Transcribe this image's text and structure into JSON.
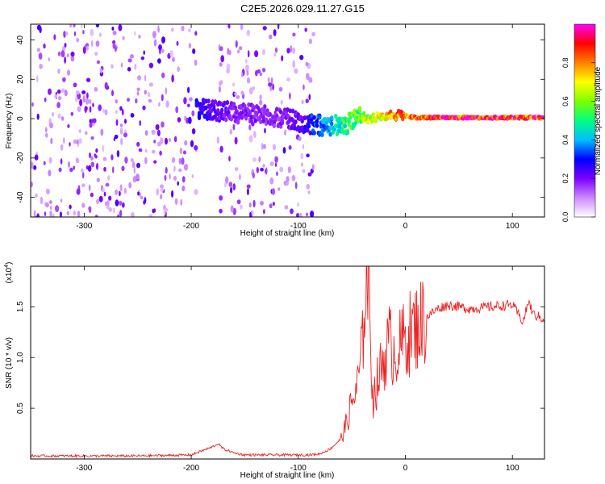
{
  "figure": {
    "title": "C2E5.2026.029.11.27.G15"
  },
  "chart_data": [
    {
      "type": "heatmap",
      "xlabel": "Height of straight line (km)",
      "ylabel": "Frequency (Hz)",
      "xlim": [
        -350,
        130
      ],
      "ylim": [
        -50,
        48
      ],
      "x_ticks": [
        -300,
        -200,
        -100,
        0,
        100
      ],
      "x_tick_labels": [
        "-300",
        "-200",
        "-100",
        "0",
        "100"
      ],
      "y_ticks": [
        -40,
        -20,
        0,
        20,
        40
      ],
      "y_tick_labels": [
        "-40",
        "-20",
        "0",
        "20",
        "40"
      ],
      "grid": false,
      "colorbar": {
        "label": "Normalized spectral amplitude",
        "range": [
          0,
          1
        ],
        "ticks": [
          0.0,
          0.2,
          0.4,
          0.6,
          0.8
        ],
        "tick_labels": [
          "0.0",
          "0.2",
          "0.4",
          "0.6",
          "0.8"
        ],
        "colors": [
          "#ffffff",
          "#cc88ff",
          "#7a00ff",
          "#0000ff",
          "#00bfff",
          "#00ff80",
          "#7fff00",
          "#ffff00",
          "#ff8000",
          "#ff0000",
          "#ff00ff"
        ]
      },
      "noise_regions": [
        {
          "x_range": [
            -350,
            -195
          ],
          "freq_range": [
            -50,
            48
          ],
          "level": 0.12
        },
        {
          "x_range": [
            -175,
            -85
          ],
          "freq_range": [
            -50,
            48
          ],
          "level": 0.1
        }
      ],
      "signal_track": [
        {
          "x": -195,
          "f": 5,
          "a": 0.3
        },
        {
          "x": -180,
          "f": 4,
          "a": 0.25
        },
        {
          "x": -160,
          "f": 3,
          "a": 0.2
        },
        {
          "x": -140,
          "f": 2,
          "a": 0.2
        },
        {
          "x": -120,
          "f": 1,
          "a": 0.18
        },
        {
          "x": -95,
          "f": -2,
          "a": 0.25
        },
        {
          "x": -85,
          "f": -3,
          "a": 0.35
        },
        {
          "x": -70,
          "f": -4,
          "a": 0.45
        },
        {
          "x": -55,
          "f": -3,
          "a": 0.55
        },
        {
          "x": -45,
          "f": 2,
          "a": 0.6
        },
        {
          "x": -35,
          "f": 0,
          "a": 0.7
        },
        {
          "x": -20,
          "f": 1,
          "a": 0.75
        },
        {
          "x": -5,
          "f": 2,
          "a": 0.85
        },
        {
          "x": 10,
          "f": 0.5,
          "a": 0.9
        },
        {
          "x": 40,
          "f": 0.5,
          "a": 0.95
        },
        {
          "x": 70,
          "f": 0.5,
          "a": 0.95
        },
        {
          "x": 100,
          "f": 0.5,
          "a": 0.95
        },
        {
          "x": 130,
          "f": 0.5,
          "a": 0.95
        }
      ]
    },
    {
      "type": "line",
      "xlabel": "Height of straight line (km)",
      "ylabel": "SNR (10 * v/v)",
      "y_multiplier_base": "(x10",
      "y_multiplier_exp": "4",
      "y_multiplier_end": ")",
      "xlim": [
        -350,
        130
      ],
      "ylim": [
        0,
        1.9
      ],
      "x_ticks": [
        -300,
        -200,
        -100,
        0,
        100
      ],
      "x_tick_labels": [
        "-300",
        "-200",
        "-100",
        "0",
        "100"
      ],
      "y_ticks": [
        0.5,
        1.0,
        1.5
      ],
      "y_tick_labels": [
        "0.5",
        "1.0",
        "1.5"
      ],
      "grid": false,
      "series": [
        {
          "color": "#ee2222",
          "x": [
            -350,
            -300,
            -250,
            -200,
            -190,
            -180,
            -175,
            -170,
            -160,
            -150,
            -140,
            -130,
            -120,
            -110,
            -100,
            -90,
            -80,
            -70,
            -60,
            -55,
            -50,
            -45,
            -40,
            -38,
            -35,
            -33,
            -30,
            -25,
            -20,
            -15,
            -10,
            -5,
            0,
            10,
            20,
            30,
            40,
            60,
            80,
            100,
            110,
            115,
            120,
            130
          ],
          "y": [
            0.03,
            0.03,
            0.03,
            0.04,
            0.08,
            0.12,
            0.15,
            0.1,
            0.06,
            0.04,
            0.04,
            0.04,
            0.04,
            0.04,
            0.04,
            0.04,
            0.05,
            0.1,
            0.2,
            0.35,
            0.55,
            0.7,
            1.1,
            1.65,
            1.9,
            1.2,
            0.6,
            0.8,
            1.0,
            1.15,
            1.05,
            1.1,
            1.2,
            1.3,
            1.4,
            1.48,
            1.52,
            1.48,
            1.5,
            1.52,
            1.35,
            1.55,
            1.42,
            1.38
          ]
        }
      ]
    }
  ]
}
